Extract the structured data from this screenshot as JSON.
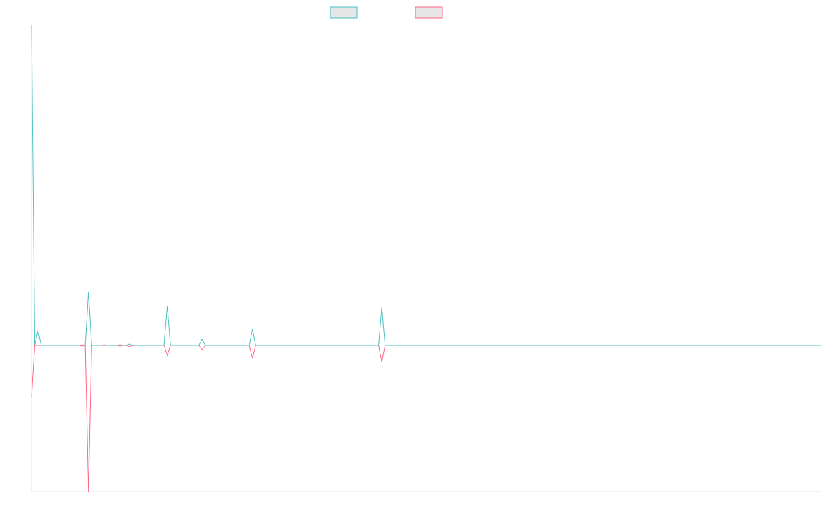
{
  "chart_data": {
    "type": "line",
    "x": [
      0,
      1,
      2,
      3,
      15,
      16,
      17,
      18,
      19,
      22,
      23,
      24,
      27,
      28,
      29,
      30,
      31,
      32,
      42,
      43,
      44,
      53,
      54,
      55,
      69,
      70,
      71,
      110,
      111,
      112,
      250
    ],
    "xlim": [
      0,
      250
    ],
    "ylim": [
      -2.13,
      4.66
    ],
    "series": [
      {
        "color": "#ff6384",
        "values": [
          -0.75,
          0,
          0,
          0,
          0,
          -0.01,
          0,
          -2.13,
          0,
          0,
          0,
          0,
          0,
          -0.01,
          0,
          0,
          -0.02,
          0,
          0,
          -0.14,
          0,
          0,
          -0.06,
          0,
          0,
          -0.19,
          0,
          0,
          -0.24,
          0,
          0
        ]
      },
      {
        "color": "#4bc0c0",
        "values": [
          4.66,
          0,
          0.22,
          0,
          0,
          0.01,
          0,
          0.78,
          0,
          0,
          0.01,
          0,
          0,
          0.01,
          0,
          0,
          0.02,
          0,
          0,
          0.57,
          0,
          0,
          0.09,
          0,
          0,
          0.24,
          0,
          0,
          0.56,
          0,
          0
        ]
      }
    ]
  }
}
